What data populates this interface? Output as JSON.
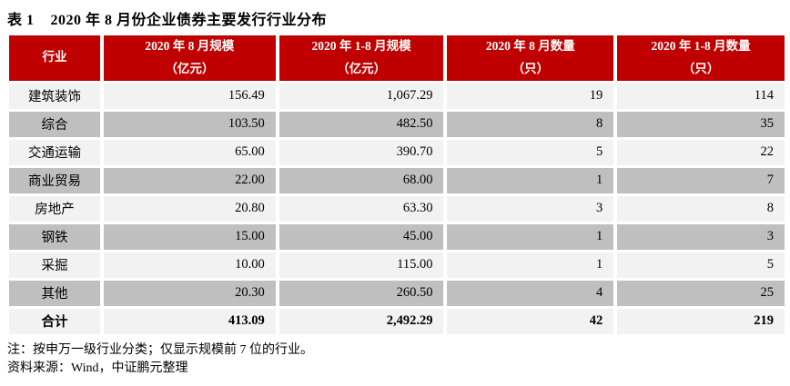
{
  "title": {
    "label": "表 1",
    "caption": "2020 年 8 月份企业债券主要发行行业分布"
  },
  "colors": {
    "header_bg": "#C00000",
    "header_text": "#FFFFFF",
    "row_light": "#F2F2F2",
    "row_dark": "#BFBFBF"
  },
  "table": {
    "columns": [
      {
        "line1": "行业",
        "line2": ""
      },
      {
        "line1": "2020 年 8 月规模",
        "line2": "（亿元）"
      },
      {
        "line1": "2020 年 1-8 月规模",
        "line2": "（亿元）"
      },
      {
        "line1": "2020 年 8 月数量",
        "line2": "（只）"
      },
      {
        "line1": "2020 年 1-8 月数量",
        "line2": "（只）"
      }
    ],
    "rows": [
      {
        "industry": "建筑装饰",
        "aug_scale": "156.49",
        "ytd_scale": "1,067.29",
        "aug_count": "19",
        "ytd_count": "114"
      },
      {
        "industry": "综合",
        "aug_scale": "103.50",
        "ytd_scale": "482.50",
        "aug_count": "8",
        "ytd_count": "35"
      },
      {
        "industry": "交通运输",
        "aug_scale": "65.00",
        "ytd_scale": "390.70",
        "aug_count": "5",
        "ytd_count": "22"
      },
      {
        "industry": "商业贸易",
        "aug_scale": "22.00",
        "ytd_scale": "68.00",
        "aug_count": "1",
        "ytd_count": "7"
      },
      {
        "industry": "房地产",
        "aug_scale": "20.80",
        "ytd_scale": "63.30",
        "aug_count": "3",
        "ytd_count": "8"
      },
      {
        "industry": "钢铁",
        "aug_scale": "15.00",
        "ytd_scale": "45.00",
        "aug_count": "1",
        "ytd_count": "3"
      },
      {
        "industry": "采掘",
        "aug_scale": "10.00",
        "ytd_scale": "115.00",
        "aug_count": "1",
        "ytd_count": "5"
      },
      {
        "industry": "其他",
        "aug_scale": "20.30",
        "ytd_scale": "260.50",
        "aug_count": "4",
        "ytd_count": "25"
      }
    ],
    "total_row": {
      "industry": "合计",
      "aug_scale": "413.09",
      "ytd_scale": "2,492.29",
      "aug_count": "42",
      "ytd_count": "219"
    }
  },
  "notes": {
    "note": "注：按申万一级行业分类；仅显示规模前 7 位的行业。",
    "source": "资料来源：Wind，中证鹏元整理"
  }
}
